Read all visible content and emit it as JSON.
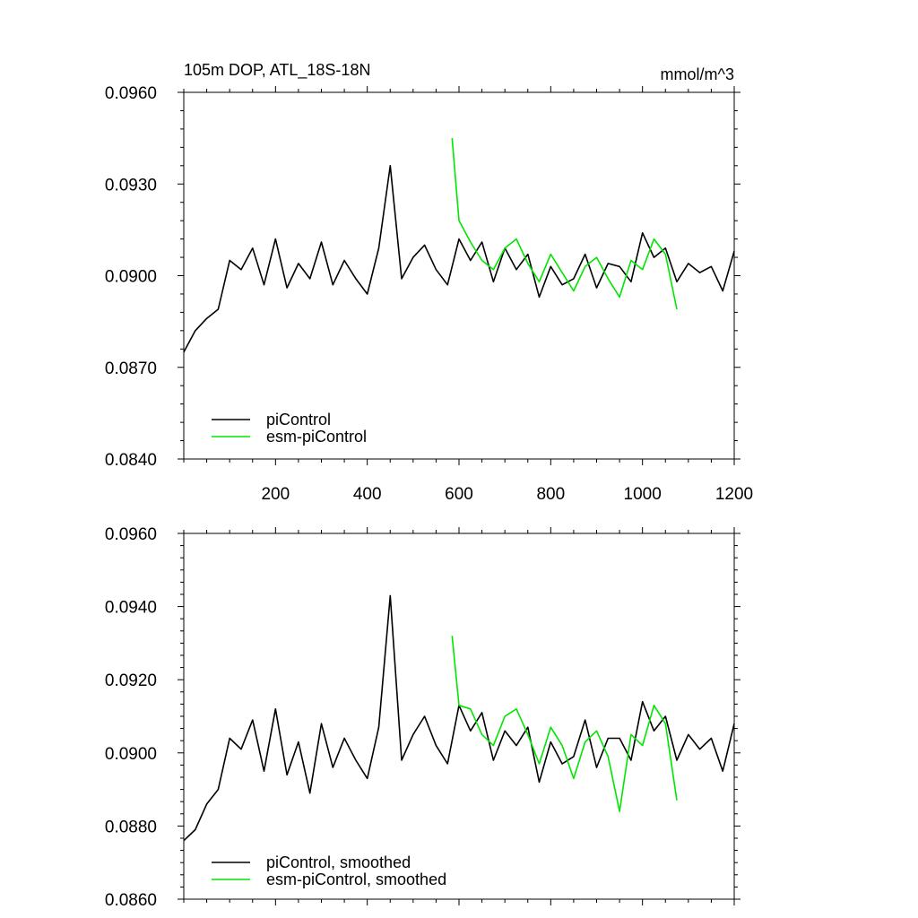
{
  "chart_data": [
    {
      "type": "line",
      "title": "105m DOP, ATL_18S-18N",
      "units": "mmol/m^3",
      "xlim": [
        0,
        1200
      ],
      "ylim": [
        0.084,
        0.096
      ],
      "yticks": [
        0.084,
        0.087,
        0.09,
        0.093,
        0.096
      ],
      "ytick_labels": [
        "0.0840",
        "0.0870",
        "0.0900",
        "0.0930",
        "0.0960"
      ],
      "xticks": [
        200,
        400,
        600,
        800,
        1000,
        1200
      ],
      "xtick_labels": [
        "200",
        "400",
        "600",
        "800",
        "1000",
        "1200"
      ],
      "legend_position": "bottom-left",
      "series": [
        {
          "name": "piControl",
          "color": "#000000",
          "x": [
            0,
            25,
            50,
            75,
            100,
            125,
            150,
            175,
            200,
            225,
            250,
            275,
            300,
            325,
            350,
            375,
            400,
            425,
            450,
            475,
            500,
            525,
            550,
            575,
            600,
            625,
            650,
            675,
            700,
            725,
            750,
            775,
            800,
            825,
            850,
            875,
            900,
            925,
            950,
            975,
            1000,
            1025,
            1050,
            1075,
            1100,
            1125,
            1150,
            1175,
            1200
          ],
          "values": [
            0.0875,
            0.0882,
            0.0886,
            0.0889,
            0.0905,
            0.0902,
            0.0909,
            0.0897,
            0.0912,
            0.0896,
            0.0904,
            0.0899,
            0.0911,
            0.0897,
            0.0905,
            0.0899,
            0.0894,
            0.0909,
            0.0936,
            0.0899,
            0.0906,
            0.091,
            0.0902,
            0.0897,
            0.0912,
            0.0905,
            0.0911,
            0.0898,
            0.0909,
            0.0902,
            0.0907,
            0.0893,
            0.0903,
            0.0897,
            0.0899,
            0.0907,
            0.0896,
            0.0904,
            0.0903,
            0.0898,
            0.0914,
            0.0906,
            0.0909,
            0.0898,
            0.0904,
            0.0901,
            0.0903,
            0.0895,
            0.0908
          ]
        },
        {
          "name": "esm-piControl",
          "color": "#00e600",
          "x": [
            585,
            600,
            625,
            650,
            675,
            700,
            725,
            750,
            775,
            800,
            825,
            850,
            875,
            900,
            925,
            950,
            975,
            1000,
            1025,
            1050,
            1075
          ],
          "values": [
            0.0945,
            0.0918,
            0.0911,
            0.0905,
            0.0902,
            0.0909,
            0.0912,
            0.0904,
            0.0898,
            0.0907,
            0.0901,
            0.0895,
            0.0903,
            0.0906,
            0.0899,
            0.0893,
            0.0905,
            0.0902,
            0.0912,
            0.0907,
            0.0889
          ]
        }
      ]
    },
    {
      "type": "line",
      "xlim": [
        0,
        1200
      ],
      "ylim": [
        0.086,
        0.096
      ],
      "yticks": [
        0.086,
        0.088,
        0.09,
        0.092,
        0.094,
        0.096
      ],
      "ytick_labels": [
        "0.0860",
        "0.0880",
        "0.0900",
        "0.0920",
        "0.0940",
        "0.0960"
      ],
      "legend_position": "bottom-left",
      "series": [
        {
          "name": "piControl, smoothed",
          "color": "#000000",
          "x": [
            0,
            25,
            50,
            75,
            100,
            125,
            150,
            175,
            200,
            225,
            250,
            275,
            300,
            325,
            350,
            375,
            400,
            425,
            450,
            475,
            500,
            525,
            550,
            575,
            600,
            625,
            650,
            675,
            700,
            725,
            750,
            775,
            800,
            825,
            850,
            875,
            900,
            925,
            950,
            975,
            1000,
            1025,
            1050,
            1075,
            1100,
            1125,
            1150,
            1175,
            1200
          ],
          "values": [
            0.0876,
            0.0879,
            0.0886,
            0.089,
            0.0904,
            0.0901,
            0.0909,
            0.0895,
            0.0912,
            0.0894,
            0.0903,
            0.0889,
            0.0908,
            0.0896,
            0.0904,
            0.0898,
            0.0893,
            0.0907,
            0.0943,
            0.0898,
            0.0905,
            0.091,
            0.0902,
            0.0897,
            0.0913,
            0.0906,
            0.0911,
            0.0898,
            0.0906,
            0.0902,
            0.0907,
            0.0892,
            0.0903,
            0.0897,
            0.0899,
            0.0909,
            0.0896,
            0.0904,
            0.0904,
            0.0898,
            0.0914,
            0.0906,
            0.091,
            0.0898,
            0.0905,
            0.0901,
            0.0904,
            0.0895,
            0.0908
          ]
        },
        {
          "name": "esm-piControl, smoothed",
          "color": "#00e600",
          "x": [
            585,
            600,
            625,
            650,
            675,
            700,
            725,
            750,
            775,
            800,
            825,
            850,
            875,
            900,
            925,
            950,
            975,
            1000,
            1025,
            1050,
            1075
          ],
          "values": [
            0.0932,
            0.0913,
            0.0912,
            0.0905,
            0.0902,
            0.091,
            0.0912,
            0.0905,
            0.0897,
            0.0907,
            0.0902,
            0.0893,
            0.0903,
            0.0906,
            0.0899,
            0.0884,
            0.0905,
            0.0902,
            0.0913,
            0.0908,
            0.0887
          ]
        }
      ]
    }
  ]
}
